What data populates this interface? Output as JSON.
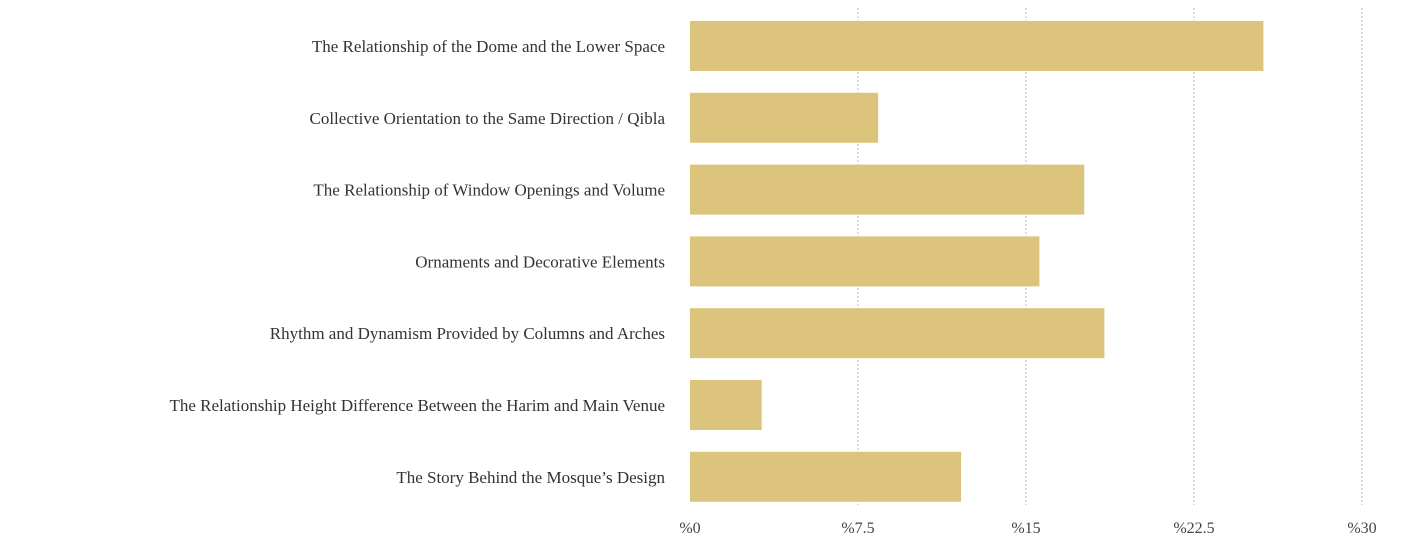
{
  "chart_data": {
    "type": "bar",
    "orientation": "horizontal",
    "categories": [
      "The Relationship of the Dome and the Lower Space",
      "Collective Orientation to the Same Direction / Qibla",
      "The Relationship of Window Openings and Volume",
      "Ornaments and Decorative Elements",
      "Rhythm and Dynamism Provided by Columns and Arches",
      "The Relationship Height Difference Between the Harim and Main Venue",
      "The Story Behind the Mosque’s Design"
    ],
    "values": [
      25.6,
      8.4,
      17.6,
      15.6,
      18.5,
      3.2,
      12.1
    ],
    "xlim": [
      0,
      30
    ],
    "xticks": [
      0,
      7.5,
      15,
      22.5,
      30
    ],
    "xtick_labels": [
      "%0",
      "%7.5",
      "%15",
      "%22.5",
      "%30"
    ],
    "grid": true,
    "bar_color": "#dcc47c"
  }
}
